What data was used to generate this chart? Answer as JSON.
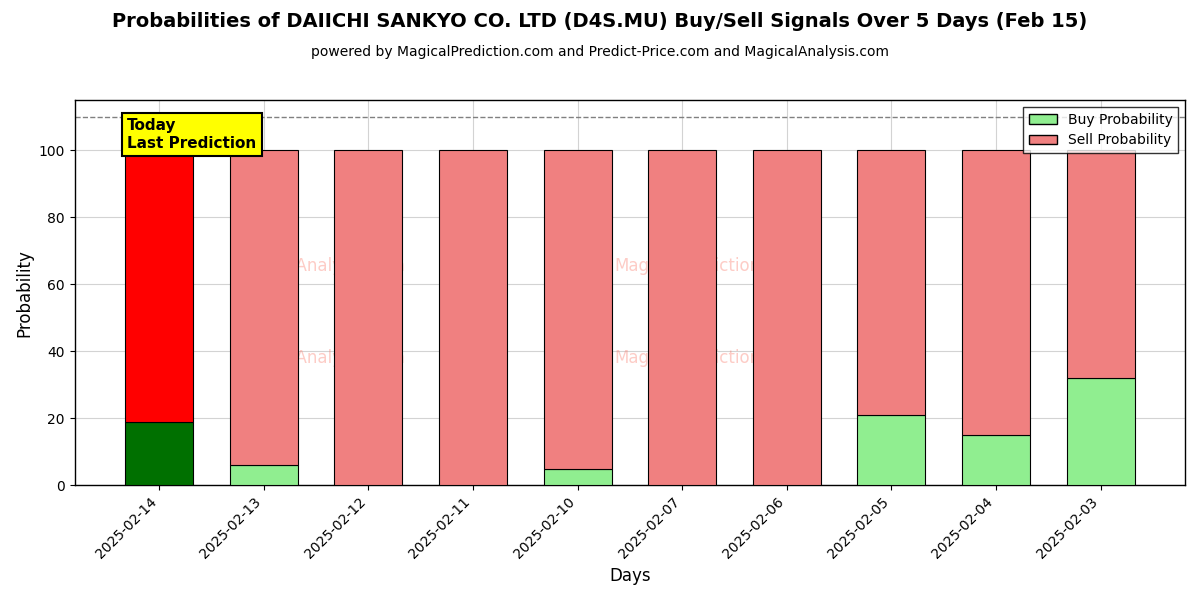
{
  "title": "Probabilities of DAIICHI SANKYO CO. LTD (D4S.MU) Buy/Sell Signals Over 5 Days (Feb 15)",
  "subtitle": "powered by MagicalPrediction.com and Predict-Price.com and MagicalAnalysis.com",
  "xlabel": "Days",
  "ylabel": "Probability",
  "categories": [
    "2025-02-14",
    "2025-02-13",
    "2025-02-12",
    "2025-02-11",
    "2025-02-10",
    "2025-02-07",
    "2025-02-06",
    "2025-02-05",
    "2025-02-04",
    "2025-02-03"
  ],
  "buy_values": [
    19,
    6,
    0,
    0,
    5,
    0,
    0,
    21,
    15,
    32
  ],
  "sell_values": [
    81,
    94,
    100,
    100,
    95,
    100,
    100,
    79,
    85,
    68
  ],
  "today_index": 0,
  "buy_color_today": "#007000",
  "sell_color_today": "#FF0000",
  "buy_color_normal": "#90EE90",
  "sell_color_normal": "#F08080",
  "today_label_bg": "#FFFF00",
  "today_label_text": "Today\nLast Prediction",
  "dashed_line_y": 110,
  "ylim": [
    0,
    115
  ],
  "yticks": [
    0,
    20,
    40,
    60,
    80,
    100
  ],
  "figsize": [
    12,
    6
  ],
  "dpi": 100,
  "bar_width": 0.65
}
